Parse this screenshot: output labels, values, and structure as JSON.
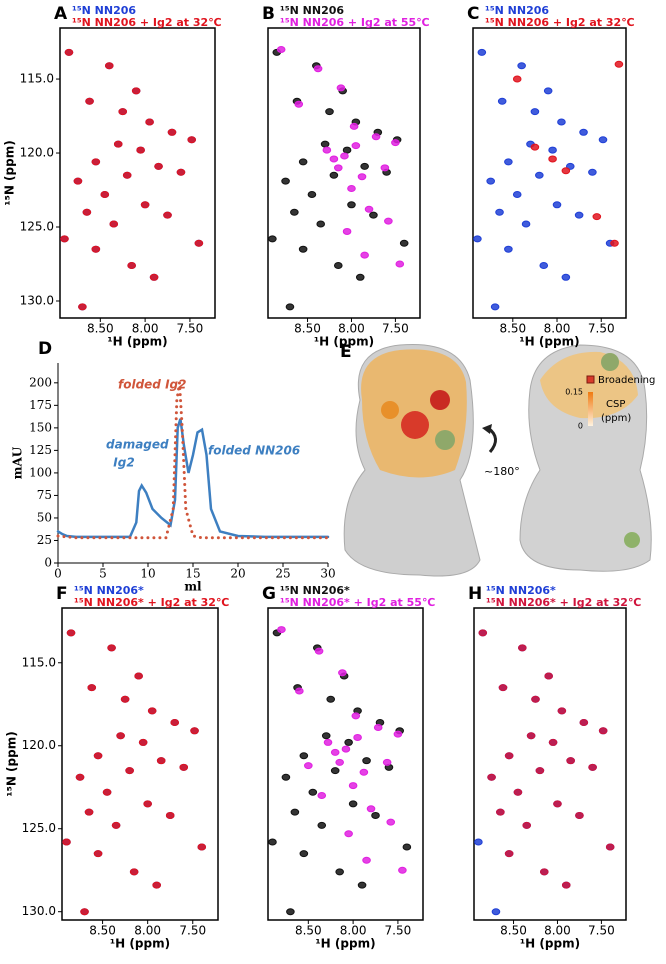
{
  "chart_data": [
    {
      "type": "scatter",
      "panel": "A",
      "xlabel": "¹H (ppm)",
      "ylabel": "¹⁵N (ppm)",
      "xlim": [
        8.95,
        7.22
      ],
      "ylim": [
        111.55,
        131.15
      ],
      "xticks": [
        {
          "value": 8.5,
          "label": "8.50"
        },
        {
          "value": 8.0,
          "label": "8.00"
        },
        {
          "value": 7.5,
          "label": "7.50"
        }
      ],
      "yticks": [
        {
          "value": 115,
          "label": "115.0"
        },
        {
          "value": 120,
          "label": "120.0"
        },
        {
          "value": 125,
          "label": "125.0"
        },
        {
          "value": 130,
          "label": "130.0"
        }
      ],
      "series": [
        {
          "name": "¹⁵N NN206",
          "color": "#1f3fd6",
          "x": [
            8.85,
            8.62,
            8.4,
            8.1,
            7.95,
            7.7,
            7.48,
            8.3,
            8.05,
            8.55,
            8.75,
            8.2,
            7.85,
            7.6,
            8.45,
            8.65,
            8.35,
            8.0,
            7.75,
            8.9,
            8.55,
            8.15,
            7.9,
            8.7,
            7.4,
            8.25
          ],
          "values": [
            113.2,
            116.5,
            114.1,
            115.8,
            117.9,
            118.6,
            119.1,
            119.4,
            119.8,
            120.6,
            121.9,
            121.5,
            120.9,
            121.3,
            122.8,
            124.0,
            124.8,
            123.5,
            124.2,
            125.8,
            126.5,
            127.6,
            128.4,
            130.4,
            126.1,
            117.2
          ]
        },
        {
          "name": "¹⁵N NN206 + Ig2 at 32℃",
          "color": "#e0141e",
          "x": [
            8.85,
            8.62,
            8.4,
            8.1,
            7.95,
            7.7,
            7.48,
            8.3,
            8.05,
            8.55,
            8.75,
            8.2,
            7.85,
            7.6,
            8.45,
            8.65,
            8.35,
            8.0,
            7.75,
            8.9,
            8.55,
            8.15,
            7.9,
            8.7,
            7.4,
            8.25
          ],
          "values": [
            113.2,
            116.5,
            114.1,
            115.8,
            117.9,
            118.6,
            119.1,
            119.4,
            119.8,
            120.6,
            121.9,
            121.5,
            120.9,
            121.3,
            122.8,
            124.0,
            124.8,
            123.5,
            124.2,
            125.8,
            126.5,
            127.6,
            128.4,
            130.4,
            126.1,
            117.2
          ]
        }
      ]
    },
    {
      "type": "scatter",
      "panel": "B",
      "xlabel": "¹H (ppm)",
      "xlim": [
        8.95,
        7.22
      ],
      "ylim": [
        111.55,
        131.15
      ],
      "xticks": [
        {
          "value": 8.5,
          "label": "8.50"
        },
        {
          "value": 8.0,
          "label": "8.00"
        },
        {
          "value": 7.5,
          "label": "7.50"
        }
      ],
      "series": [
        {
          "name": "¹⁵N NN206",
          "color": "#111111",
          "x": [
            8.85,
            8.62,
            8.4,
            8.1,
            7.95,
            7.7,
            7.48,
            8.3,
            8.05,
            8.55,
            8.75,
            8.2,
            7.85,
            7.6,
            8.45,
            8.65,
            8.35,
            8.0,
            7.75,
            8.9,
            8.55,
            8.15,
            7.9,
            8.7,
            7.4,
            8.25
          ],
          "values": [
            113.2,
            116.5,
            114.1,
            115.8,
            117.9,
            118.6,
            119.1,
            119.4,
            119.8,
            120.6,
            121.9,
            121.5,
            120.9,
            121.3,
            122.8,
            124.0,
            124.8,
            123.5,
            124.2,
            125.8,
            126.5,
            127.6,
            128.4,
            130.4,
            126.1,
            117.2
          ]
        },
        {
          "name": "¹⁵N NN206 + Ig2 at 55℃",
          "color": "#e020e0",
          "x": [
            8.8,
            8.6,
            8.38,
            8.12,
            7.97,
            7.72,
            7.5,
            8.28,
            8.08,
            7.95,
            8.15,
            7.88,
            7.62,
            8.0,
            8.2,
            7.8,
            8.05,
            7.58,
            7.85,
            7.45
          ],
          "values": [
            113.0,
            116.7,
            114.3,
            115.6,
            118.2,
            118.9,
            119.3,
            119.8,
            120.2,
            119.5,
            121.0,
            121.6,
            121.0,
            122.4,
            120.4,
            123.8,
            125.3,
            124.6,
            126.9,
            127.5
          ]
        }
      ]
    },
    {
      "type": "scatter",
      "panel": "C",
      "xlabel": "¹H (ppm)",
      "xlim": [
        8.95,
        7.22
      ],
      "ylim": [
        111.55,
        131.15
      ],
      "xticks": [
        {
          "value": 8.5,
          "label": "8.50"
        },
        {
          "value": 8.0,
          "label": "8.00"
        },
        {
          "value": 7.5,
          "label": "7.50"
        }
      ],
      "series": [
        {
          "name": "¹⁵N NN206",
          "color": "#1f3fd6",
          "x": [
            8.85,
            8.62,
            8.4,
            8.1,
            7.95,
            7.7,
            7.48,
            8.3,
            8.05,
            8.55,
            8.75,
            8.2,
            7.85,
            7.6,
            8.45,
            8.65,
            8.35,
            8.0,
            7.75,
            8.9,
            8.55,
            8.15,
            7.9,
            8.7,
            7.4,
            8.25
          ],
          "values": [
            113.2,
            116.5,
            114.1,
            115.8,
            117.9,
            118.6,
            119.1,
            119.4,
            119.8,
            120.6,
            121.9,
            121.5,
            120.9,
            121.3,
            122.8,
            124.0,
            124.8,
            123.5,
            124.2,
            125.8,
            126.5,
            127.6,
            128.4,
            130.4,
            126.1,
            117.2
          ]
        },
        {
          "name": "¹⁵N NN206 + Ig2 at 32℃",
          "color": "#e0141e",
          "x": [
            8.25,
            8.05,
            7.9,
            7.55,
            7.35,
            8.45,
            7.3
          ],
          "values": [
            119.6,
            120.4,
            121.2,
            124.3,
            126.1,
            115.0,
            114.0
          ]
        }
      ]
    },
    {
      "type": "line",
      "panel": "D",
      "xlabel": "ml",
      "ylabel": "mAU",
      "xlim": [
        0,
        30
      ],
      "ylim": [
        0,
        222
      ],
      "xticks": [
        0,
        5,
        10,
        15,
        20,
        25,
        30
      ],
      "yticks": [
        0,
        25,
        50,
        75,
        100,
        125,
        150,
        175,
        200
      ],
      "annotations": [
        "damaged",
        "Ig2",
        "folded Ig2",
        "folded NN206"
      ],
      "series": [
        {
          "color": "#3d7fc1",
          "x": [
            0,
            0.5,
            1,
            2,
            4,
            6,
            8,
            8.7,
            9,
            9.3,
            9.8,
            10.5,
            11.5,
            12.5,
            13,
            13.3,
            13.6,
            14,
            14.5,
            15,
            15.5,
            16,
            16.5,
            17,
            18,
            20,
            23,
            25,
            30
          ],
          "values": [
            35,
            32,
            30,
            29,
            29,
            29,
            29,
            45,
            80,
            86,
            78,
            60,
            50,
            42,
            70,
            150,
            160,
            130,
            100,
            120,
            145,
            148,
            120,
            60,
            35,
            30,
            29,
            29,
            29
          ]
        },
        {
          "color": "#d0553a",
          "dotted": true,
          "x": [
            0,
            2,
            4,
            6,
            8,
            10,
            12,
            12.8,
            13.2,
            13.5,
            13.8,
            14.2,
            15,
            16,
            18,
            20,
            25,
            30
          ],
          "values": [
            30,
            28,
            28,
            28,
            28,
            28,
            28,
            60,
            180,
            200,
            150,
            60,
            30,
            28,
            28,
            28,
            28,
            28
          ]
        }
      ]
    },
    {
      "type": "scatter",
      "panel": "F",
      "xlabel": "¹H (ppm)",
      "ylabel": "¹⁵N (ppm)",
      "xlim": [
        8.95,
        7.22
      ],
      "ylim": [
        111.7,
        130.5
      ],
      "xticks": [
        {
          "value": 8.5,
          "label": "8.50"
        },
        {
          "value": 8.0,
          "label": "8.00"
        },
        {
          "value": 7.5,
          "label": "7.50"
        }
      ],
      "yticks": [
        {
          "value": 115,
          "label": "115.0"
        },
        {
          "value": 120,
          "label": "120.0"
        },
        {
          "value": 125,
          "label": "125.0"
        },
        {
          "value": 130,
          "label": "130.0"
        }
      ],
      "series": [
        {
          "name": "¹⁵N NN206*",
          "color": "#1f3fd6",
          "x": [
            8.85,
            8.62,
            8.4,
            8.1,
            7.95,
            7.7,
            7.48,
            8.3,
            8.05,
            8.55,
            8.75,
            8.2,
            7.85,
            7.6,
            8.45,
            8.65,
            8.35,
            8.0,
            7.75,
            8.9,
            8.55,
            8.15,
            7.9,
            8.7,
            7.4,
            8.25
          ],
          "values": [
            113.2,
            116.5,
            114.1,
            115.8,
            117.9,
            118.6,
            119.1,
            119.4,
            119.8,
            120.6,
            121.9,
            121.5,
            120.9,
            121.3,
            122.8,
            124.0,
            124.8,
            123.5,
            124.2,
            125.8,
            126.5,
            127.6,
            128.4,
            130.0,
            126.1,
            117.2
          ]
        },
        {
          "name": "¹⁵N NN206* + Ig2 at 32℃",
          "color": "#e0141e",
          "x": [
            8.85,
            8.62,
            8.4,
            8.1,
            7.95,
            7.7,
            7.48,
            8.3,
            8.05,
            8.55,
            8.75,
            8.2,
            7.85,
            7.6,
            8.45,
            8.65,
            8.35,
            8.0,
            7.75,
            8.9,
            8.55,
            8.15,
            7.9,
            8.7,
            7.4,
            8.25
          ],
          "values": [
            113.2,
            116.5,
            114.1,
            115.8,
            117.9,
            118.6,
            119.1,
            119.4,
            119.8,
            120.6,
            121.9,
            121.5,
            120.9,
            121.3,
            122.8,
            124.0,
            124.8,
            123.5,
            124.2,
            125.8,
            126.5,
            127.6,
            128.4,
            130.0,
            126.1,
            117.2
          ]
        }
      ]
    },
    {
      "type": "scatter",
      "panel": "G",
      "xlabel": "¹H (ppm)",
      "xlim": [
        8.95,
        7.22
      ],
      "ylim": [
        111.7,
        130.5
      ],
      "xticks": [
        {
          "value": 8.5,
          "label": "8.50"
        },
        {
          "value": 8.0,
          "label": "8.00"
        },
        {
          "value": 7.5,
          "label": "7.50"
        }
      ],
      "series": [
        {
          "name": "¹⁵N NN206*",
          "color": "#111111",
          "x": [
            8.85,
            8.62,
            8.4,
            8.1,
            7.95,
            7.7,
            7.48,
            8.3,
            8.05,
            8.55,
            8.75,
            8.2,
            7.85,
            7.6,
            8.45,
            8.65,
            8.35,
            8.0,
            7.75,
            8.9,
            8.55,
            8.15,
            7.9,
            8.7,
            7.4,
            8.25
          ],
          "values": [
            113.2,
            116.5,
            114.1,
            115.8,
            117.9,
            118.6,
            119.1,
            119.4,
            119.8,
            120.6,
            121.9,
            121.5,
            120.9,
            121.3,
            122.8,
            124.0,
            124.8,
            123.5,
            124.2,
            125.8,
            126.5,
            127.6,
            128.4,
            130.0,
            126.1,
            117.2
          ]
        },
        {
          "name": "¹⁵N NN206* + Ig2 at 55℃",
          "color": "#e020e0",
          "x": [
            8.8,
            8.6,
            8.38,
            8.12,
            7.97,
            7.72,
            7.5,
            8.28,
            8.08,
            7.95,
            8.15,
            7.88,
            7.62,
            8.0,
            8.2,
            7.8,
            8.05,
            7.58,
            7.85,
            7.45,
            8.5,
            8.35
          ],
          "values": [
            113.0,
            116.7,
            114.3,
            115.6,
            118.2,
            118.9,
            119.3,
            119.8,
            120.2,
            119.5,
            121.0,
            121.6,
            121.0,
            122.4,
            120.4,
            123.8,
            125.3,
            124.6,
            126.9,
            127.5,
            121.2,
            123.0
          ]
        }
      ]
    },
    {
      "type": "scatter",
      "panel": "H",
      "xlabel": "¹H (ppm)",
      "xlim": [
        8.95,
        7.22
      ],
      "ylim": [
        111.7,
        130.5
      ],
      "xticks": [
        {
          "value": 8.5,
          "label": "8.50"
        },
        {
          "value": 8.0,
          "label": "8.00"
        },
        {
          "value": 7.5,
          "label": "7.50"
        }
      ],
      "series": [
        {
          "name": "¹⁵N NN206*",
          "color": "#1f3fd6",
          "x": [
            8.85,
            8.62,
            8.4,
            8.1,
            7.95,
            7.7,
            7.48,
            8.3,
            8.05,
            8.55,
            8.75,
            8.2,
            7.85,
            7.6,
            8.45,
            8.65,
            8.35,
            8.0,
            7.75,
            8.9,
            8.55,
            8.15,
            7.9,
            8.7,
            7.4,
            8.25
          ],
          "values": [
            113.2,
            116.5,
            114.1,
            115.8,
            117.9,
            118.6,
            119.1,
            119.4,
            119.8,
            120.6,
            121.9,
            121.5,
            120.9,
            121.3,
            122.8,
            124.0,
            124.8,
            123.5,
            124.2,
            125.8,
            126.5,
            127.6,
            128.4,
            130.0,
            126.1,
            117.2
          ]
        },
        {
          "name": "¹⁵N NN206* + Ig2 at 32℃",
          "color": "#d0143c",
          "x": [
            8.85,
            8.62,
            8.4,
            8.1,
            7.95,
            7.7,
            7.48,
            8.3,
            8.05,
            8.55,
            8.75,
            8.2,
            7.85,
            7.6,
            8.45,
            8.65,
            8.35,
            8.0,
            7.75,
            8.55,
            8.15,
            7.9,
            7.4,
            8.25
          ],
          "values": [
            113.2,
            116.5,
            114.1,
            115.8,
            117.9,
            118.6,
            119.1,
            119.4,
            119.8,
            120.6,
            121.9,
            121.5,
            120.9,
            121.3,
            122.8,
            124.0,
            124.8,
            123.5,
            124.2,
            126.5,
            127.6,
            128.4,
            126.1,
            117.2
          ]
        }
      ]
    }
  ],
  "panel_e": {
    "panel": "E",
    "broadening": "Broadening",
    "csp_max": "0.15",
    "csp_label": "CSP",
    "csp_unit": "(ppm)",
    "csp_min": "0",
    "rotation": "~180°"
  }
}
